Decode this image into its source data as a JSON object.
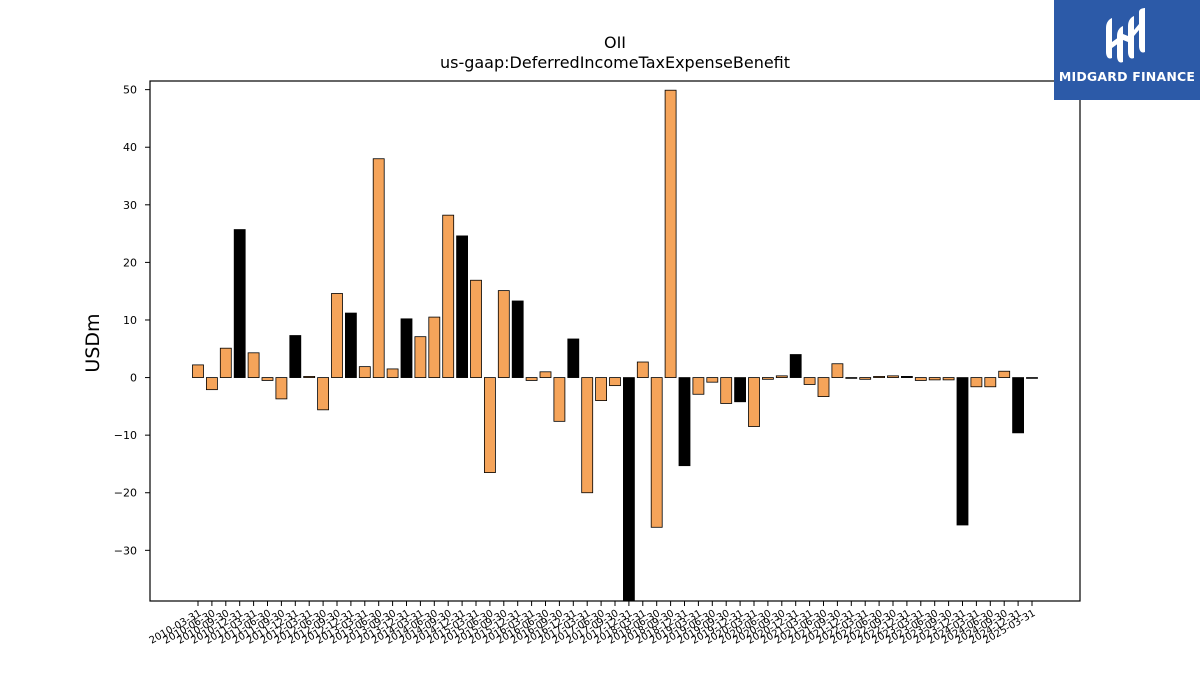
{
  "colors": {
    "positive_bar": "#f5a45a",
    "highlight_bar": "#000000",
    "logo_background": "#2c5aa8",
    "logo_foreground": "#ffffff"
  },
  "logo": {
    "text": "MIDGARD FINANCE",
    "icon": "midgard-finance-logo-icon"
  },
  "chart_data": {
    "type": "bar",
    "title": "OII",
    "subtitle": "us-gaap:DeferredIncomeTaxExpenseBenefit",
    "xlabel": "",
    "ylabel": "USDm",
    "ylim": [
      -38.8,
      51.5
    ],
    "yticks": [
      -30,
      -20,
      -10,
      0,
      10,
      20,
      30,
      40,
      50
    ],
    "grid": false,
    "legend": "none",
    "categories": [
      "2010-03-31",
      "2010-06-30",
      "2010-09-30",
      "2010-12-31",
      "2011-03-31",
      "2011-06-30",
      "2011-09-30",
      "2011-12-31",
      "2012-03-31",
      "2012-06-30",
      "2012-09-30",
      "2012-12-31",
      "2013-03-31",
      "2013-06-30",
      "2013-09-30",
      "2013-12-31",
      "2014-03-31",
      "2014-06-30",
      "2014-09-30",
      "2014-12-31",
      "2015-03-31",
      "2015-06-30",
      "2015-09-30",
      "2015-12-31",
      "2016-03-31",
      "2016-06-30",
      "2016-09-30",
      "2016-12-31",
      "2017-03-31",
      "2017-06-30",
      "2017-09-30",
      "2017-12-31",
      "2018-03-31",
      "2018-06-30",
      "2018-09-30",
      "2018-12-31",
      "2019-03-31",
      "2019-06-30",
      "2019-09-30",
      "2019-12-31",
      "2020-03-31",
      "2020-06-30",
      "2020-09-30",
      "2020-12-31",
      "2021-03-31",
      "2021-06-30",
      "2021-09-30",
      "2021-12-31",
      "2022-03-31",
      "2022-06-30",
      "2022-09-30",
      "2022-12-31",
      "2023-03-31",
      "2023-06-30",
      "2023-09-30",
      "2023-12-31",
      "2024-03-31",
      "2024-06-30",
      "2024-09-30",
      "2024-12-31",
      "2025-03-31"
    ],
    "values": [
      2.2,
      -2.1,
      5.1,
      25.7,
      4.3,
      -0.5,
      -3.7,
      7.3,
      0.2,
      -5.6,
      14.6,
      11.2,
      1.9,
      38.0,
      1.5,
      10.2,
      7.1,
      10.5,
      28.2,
      24.6,
      16.9,
      -16.5,
      15.1,
      13.3,
      -0.5,
      1.0,
      -7.6,
      6.7,
      -20.0,
      -4.0,
      -1.4,
      -38.8,
      2.7,
      -26.0,
      49.9,
      -15.3,
      -2.9,
      -0.8,
      -4.5,
      -4.2,
      -8.5,
      -0.3,
      0.3,
      4.0,
      -1.2,
      -3.3,
      2.4,
      -0.1,
      -0.3,
      0.2,
      0.3,
      0.2,
      -0.5,
      -0.4,
      -0.4,
      -25.6,
      -1.6,
      -1.6,
      1.1,
      -9.6,
      -0.1
    ],
    "highlighted": [
      3,
      7,
      11,
      15,
      19,
      23,
      27,
      31,
      35,
      39,
      43,
      47,
      51,
      55,
      59
    ]
  }
}
